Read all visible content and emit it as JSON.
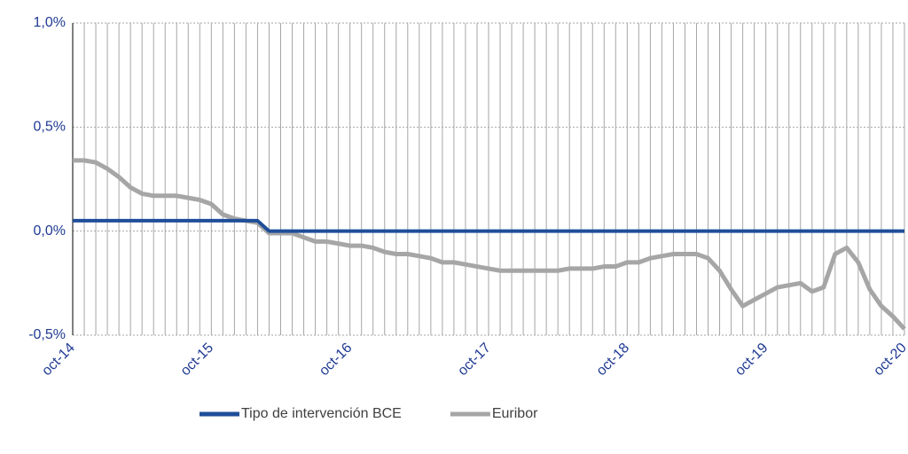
{
  "chart_data": {
    "type": "line",
    "categories": [
      "oct-14",
      null,
      null,
      null,
      null,
      null,
      null,
      null,
      null,
      null,
      null,
      null,
      "oct-15",
      null,
      null,
      null,
      null,
      null,
      null,
      null,
      null,
      null,
      null,
      null,
      "oct-16",
      null,
      null,
      null,
      null,
      null,
      null,
      null,
      null,
      null,
      null,
      null,
      "oct-17",
      null,
      null,
      null,
      null,
      null,
      null,
      null,
      null,
      null,
      null,
      null,
      "oct-18",
      null,
      null,
      null,
      null,
      null,
      null,
      null,
      null,
      null,
      null,
      null,
      "oct-19",
      null,
      null,
      null,
      null,
      null,
      null,
      null,
      null,
      null,
      null,
      null,
      "oct-20"
    ],
    "series": [
      {
        "name": "Tipo de intervención BCE",
        "color": "#1f4e99",
        "values": [
          0.05,
          0.05,
          0.05,
          0.05,
          0.05,
          0.05,
          0.05,
          0.05,
          0.05,
          0.05,
          0.05,
          0.05,
          0.05,
          0.05,
          0.05,
          0.05,
          0.05,
          0,
          0,
          0,
          0,
          0,
          0,
          0,
          0,
          0,
          0,
          0,
          0,
          0,
          0,
          0,
          0,
          0,
          0,
          0,
          0,
          0,
          0,
          0,
          0,
          0,
          0,
          0,
          0,
          0,
          0,
          0,
          0,
          0,
          0,
          0,
          0,
          0,
          0,
          0,
          0,
          0,
          0,
          0,
          0,
          0,
          0,
          0,
          0,
          0,
          0,
          0,
          0,
          0,
          0,
          0,
          0
        ]
      },
      {
        "name": "Euribor",
        "color": "#a6a6a6",
        "values": [
          0.34,
          0.34,
          0.33,
          0.3,
          0.26,
          0.21,
          0.18,
          0.17,
          0.17,
          0.17,
          0.16,
          0.15,
          0.13,
          0.08,
          0.06,
          0.05,
          0.04,
          -0.01,
          -0.01,
          -0.01,
          -0.03,
          -0.05,
          -0.05,
          -0.06,
          -0.07,
          -0.07,
          -0.08,
          -0.1,
          -0.11,
          -0.11,
          -0.12,
          -0.13,
          -0.15,
          -0.15,
          -0.16,
          -0.17,
          -0.18,
          -0.19,
          -0.19,
          -0.19,
          -0.19,
          -0.19,
          -0.19,
          -0.18,
          -0.18,
          -0.18,
          -0.17,
          -0.17,
          -0.15,
          -0.15,
          -0.13,
          -0.12,
          -0.11,
          -0.11,
          -0.11,
          -0.13,
          -0.19,
          -0.28,
          -0.36,
          -0.33,
          -0.3,
          -0.27,
          -0.26,
          -0.25,
          -0.29,
          -0.27,
          -0.11,
          -0.08,
          -0.15,
          -0.28,
          -0.36,
          -0.41,
          -0.47
        ]
      }
    ],
    "ylim": [
      -0.5,
      1.0
    ],
    "yticks": [
      {
        "value": -0.5,
        "label": "-0,5%"
      },
      {
        "value": 0,
        "label": "0,0%"
      },
      {
        "value": 0.5,
        "label": "0,5%"
      },
      {
        "value": 1.0,
        "label": "1,0%"
      }
    ],
    "grid": true,
    "legend": "bottom"
  }
}
